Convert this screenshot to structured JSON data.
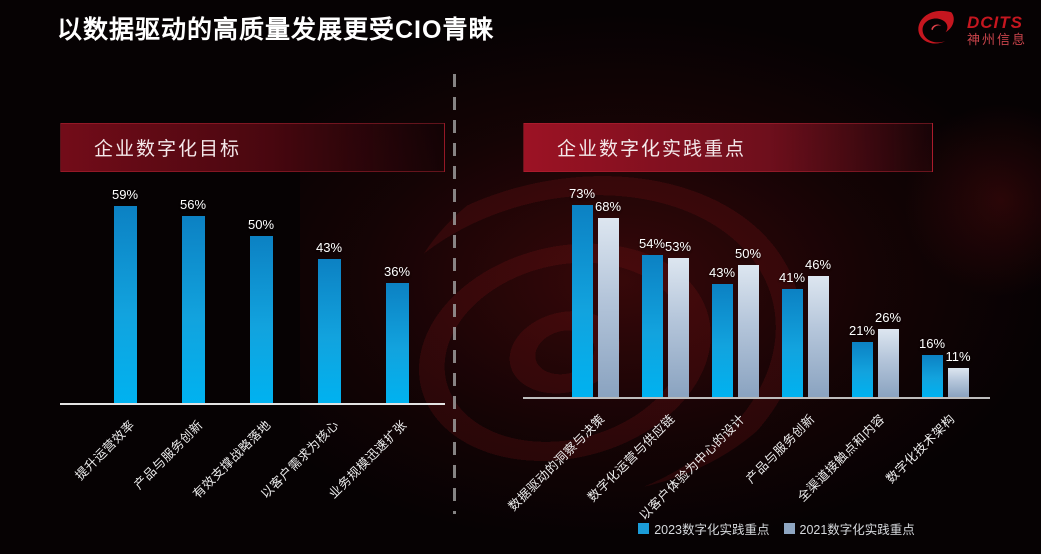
{
  "page": {
    "title": "以数据驱动的高质量发展更受CIO青睐"
  },
  "logo": {
    "brand": "DCITS",
    "name": "神州信息"
  },
  "colors": {
    "accent_red": "#9c1224",
    "bar_blue": "#00a9e8",
    "bar_gray": "#a9bdd4",
    "background": "#060203",
    "divider_gray": "#9b9b9b"
  },
  "chart_data": [
    {
      "type": "bar",
      "title": "企业数字化目标",
      "categories": [
        "提升运营效率",
        "产品与服务创新",
        "有效支撑战略落地",
        "以客户需求为核心",
        "业务规模迅速扩张"
      ],
      "values": [
        59,
        56,
        50,
        43,
        36
      ],
      "unit": "%",
      "ylim": [
        0,
        100
      ],
      "grid": false,
      "legend_position": "none",
      "bar_color": "#00a9e8"
    },
    {
      "type": "bar",
      "title": "企业数字化实践重点",
      "categories": [
        "数据驱动的洞察与决策",
        "数字化运营与供应链",
        "以客户体验为中心的设计",
        "产品与服务创新",
        "全渠道接触点和内容",
        "数字化技术架构"
      ],
      "series": [
        {
          "name": "2023数字化实践重点",
          "values": [
            73,
            54,
            43,
            41,
            21,
            16
          ],
          "color": "#00a9e8"
        },
        {
          "name": "2021数字化实践重点",
          "values": [
            68,
            53,
            50,
            46,
            26,
            11
          ],
          "color": "#a9bdd4"
        }
      ],
      "unit": "%",
      "ylim": [
        0,
        100
      ],
      "grid": false,
      "legend_position": "bottom"
    }
  ]
}
